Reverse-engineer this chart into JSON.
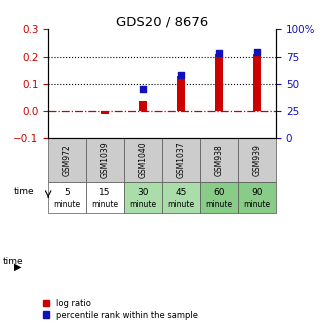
{
  "title": "GDS20 / 8676",
  "samples": [
    "GSM972",
    "GSM1039",
    "GSM1040",
    "GSM1037",
    "GSM938",
    "GSM939"
  ],
  "log_ratio": [
    0.0,
    -0.012,
    0.035,
    0.13,
    0.21,
    0.21
  ],
  "percentile": [
    null,
    null,
    45,
    58,
    78,
    79
  ],
  "time_labels_top": [
    "5",
    "15",
    "30",
    "45",
    "60",
    "90"
  ],
  "time_labels_bot": [
    "minute",
    "minute",
    "minute",
    "minute",
    "minute",
    "minute"
  ],
  "time_colors": [
    "#ffffff",
    "#ffffff",
    "#aaddaa",
    "#aaddaa",
    "#88cc88",
    "#88cc88"
  ],
  "ylim_left": [
    -0.1,
    0.3
  ],
  "ylim_right": [
    0,
    100
  ],
  "yticks_left": [
    -0.1,
    0.0,
    0.1,
    0.2,
    0.3
  ],
  "yticks_right": [
    0,
    25,
    50,
    75,
    100
  ],
  "ytick_right_labels": [
    "0",
    "25",
    "50",
    "75",
    "100%"
  ],
  "bar_color": "#cc0000",
  "dot_color": "#1111bb",
  "zero_line_color": "#cc0000",
  "sample_bg_color": "#cccccc",
  "legend_bar_label": "log ratio",
  "legend_dot_label": "percentile rank within the sample"
}
